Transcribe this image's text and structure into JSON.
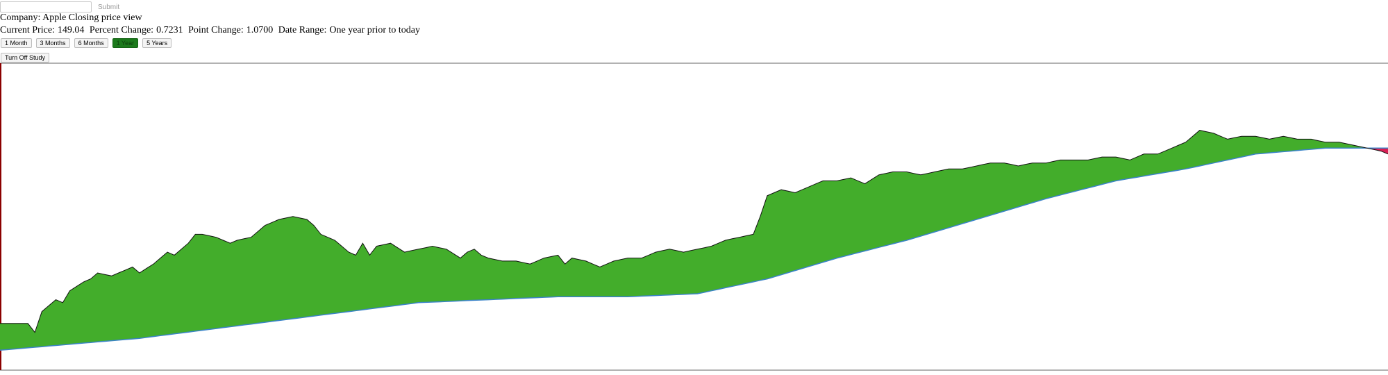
{
  "search": {
    "value": "",
    "placeholder": "",
    "submit_label": "Submit"
  },
  "company": {
    "label": "Company:",
    "name": "Apple",
    "view": "Closing price view"
  },
  "stats": {
    "current_price_label": "Current Price:",
    "current_price": "149.04",
    "percent_change_label": "Percent Change:",
    "percent_change": "0.7231",
    "point_change_label": "Point Change:",
    "point_change": "1.0700",
    "date_range_label": "Date Range:",
    "date_range": "One year prior to today"
  },
  "range_buttons": [
    "1 Month",
    "3 Months",
    "6 Months",
    "1 Year",
    "5 Years"
  ],
  "active_range": "1 Year",
  "study_button": "Turn Off Study",
  "colors": {
    "above": "#43ad2b",
    "below": "#d81f55",
    "moving_average": "#3a83c8",
    "axis": "#8b0000",
    "border": "#666666"
  },
  "chart_data": {
    "type": "area",
    "description_series": [
      "closing-price",
      "moving-average"
    ],
    "n_points": 200,
    "ylim": [
      0,
      100
    ],
    "price_keyframes": [
      [
        0,
        15
      ],
      [
        4,
        15
      ],
      [
        5,
        12
      ],
      [
        6,
        19
      ],
      [
        7,
        21
      ],
      [
        8,
        23
      ],
      [
        9,
        22
      ],
      [
        10,
        26
      ],
      [
        12,
        29
      ],
      [
        13,
        30
      ],
      [
        14,
        32
      ],
      [
        16,
        31
      ],
      [
        18,
        33
      ],
      [
        19,
        34
      ],
      [
        20,
        32
      ],
      [
        22,
        35
      ],
      [
        23,
        37
      ],
      [
        24,
        39
      ],
      [
        25,
        38
      ],
      [
        27,
        42
      ],
      [
        28,
        45
      ],
      [
        29,
        45
      ],
      [
        31,
        44
      ],
      [
        33,
        42
      ],
      [
        34,
        43
      ],
      [
        36,
        44
      ],
      [
        38,
        48
      ],
      [
        40,
        50
      ],
      [
        42,
        51
      ],
      [
        44,
        50
      ],
      [
        45,
        48
      ],
      [
        46,
        45
      ],
      [
        47,
        44
      ],
      [
        48,
        43
      ],
      [
        49,
        41
      ],
      [
        50,
        39
      ],
      [
        51,
        38
      ],
      [
        52,
        42
      ],
      [
        53,
        38
      ],
      [
        54,
        41
      ],
      [
        56,
        42
      ],
      [
        58,
        39
      ],
      [
        60,
        40
      ],
      [
        62,
        41
      ],
      [
        64,
        40
      ],
      [
        66,
        37
      ],
      [
        67,
        39
      ],
      [
        68,
        40
      ],
      [
        69,
        38
      ],
      [
        70,
        37
      ],
      [
        72,
        36
      ],
      [
        74,
        36
      ],
      [
        76,
        35
      ],
      [
        78,
        37
      ],
      [
        80,
        38
      ],
      [
        81,
        35
      ],
      [
        82,
        37
      ],
      [
        84,
        36
      ],
      [
        86,
        34
      ],
      [
        88,
        36
      ],
      [
        90,
        37
      ],
      [
        92,
        37
      ],
      [
        94,
        39
      ],
      [
        96,
        40
      ],
      [
        98,
        39
      ],
      [
        100,
        40
      ],
      [
        102,
        41
      ],
      [
        104,
        43
      ],
      [
        106,
        44
      ],
      [
        108,
        45
      ],
      [
        109,
        51
      ],
      [
        110,
        58
      ],
      [
        112,
        60
      ],
      [
        114,
        59
      ],
      [
        116,
        61
      ],
      [
        118,
        63
      ],
      [
        120,
        63
      ],
      [
        122,
        64
      ],
      [
        124,
        62
      ],
      [
        126,
        65
      ],
      [
        128,
        66
      ],
      [
        130,
        66
      ],
      [
        132,
        65
      ],
      [
        134,
        66
      ],
      [
        136,
        67
      ],
      [
        138,
        67
      ],
      [
        140,
        68
      ],
      [
        142,
        69
      ],
      [
        144,
        69
      ],
      [
        146,
        68
      ],
      [
        148,
        69
      ],
      [
        150,
        69
      ],
      [
        152,
        70
      ],
      [
        154,
        70
      ],
      [
        156,
        70
      ],
      [
        158,
        71
      ],
      [
        160,
        71
      ],
      [
        162,
        70
      ],
      [
        164,
        72
      ],
      [
        166,
        72
      ],
      [
        168,
        74
      ],
      [
        170,
        76
      ],
      [
        172,
        80
      ],
      [
        174,
        79
      ],
      [
        176,
        77
      ],
      [
        178,
        78
      ],
      [
        180,
        78
      ],
      [
        182,
        77
      ],
      [
        184,
        78
      ],
      [
        186,
        77
      ],
      [
        188,
        77
      ],
      [
        190,
        76
      ],
      [
        192,
        76
      ],
      [
        194,
        75
      ],
      [
        196,
        74
      ],
      [
        198,
        73
      ],
      [
        199,
        72
      ]
    ],
    "ma_keyframes": [
      [
        0,
        6
      ],
      [
        10,
        8
      ],
      [
        20,
        10
      ],
      [
        30,
        13
      ],
      [
        40,
        16
      ],
      [
        50,
        19
      ],
      [
        60,
        22
      ],
      [
        70,
        23
      ],
      [
        80,
        24
      ],
      [
        90,
        24
      ],
      [
        100,
        25
      ],
      [
        110,
        30
      ],
      [
        120,
        37
      ],
      [
        130,
        43
      ],
      [
        140,
        50
      ],
      [
        150,
        57
      ],
      [
        160,
        63
      ],
      [
        170,
        67
      ],
      [
        180,
        72
      ],
      [
        190,
        74
      ],
      [
        199,
        74
      ]
    ]
  }
}
